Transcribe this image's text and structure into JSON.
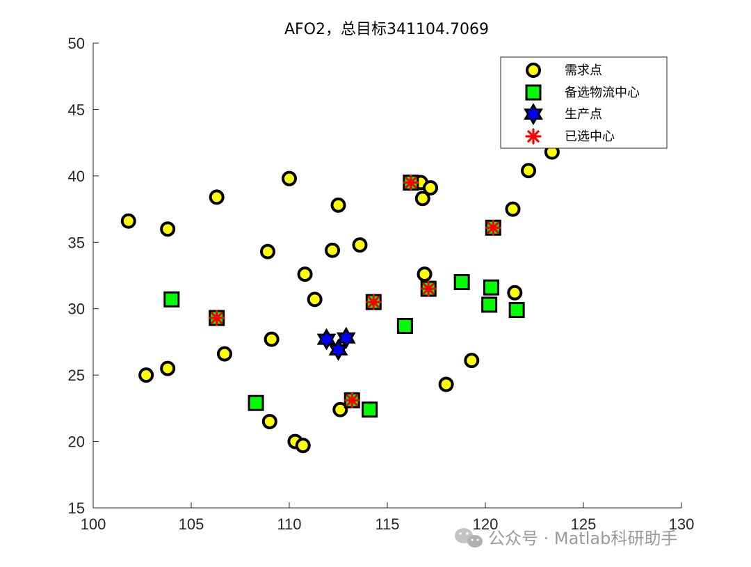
{
  "watermark": {
    "text": "公众号 · Matlab科研助手"
  },
  "colors": {
    "demand_fill": "#ffff00",
    "candidate_fill": "#00ff00",
    "production_fill": "#0000ff",
    "selected_color": "#ff0000",
    "edge": "#000000",
    "axis": "#262626"
  },
  "chart_data": {
    "type": "scatter",
    "title": "AFO2，总目标341104.7069",
    "xlabel": "",
    "ylabel": "",
    "xlim": [
      100,
      130
    ],
    "ylim": [
      15,
      50
    ],
    "xticks": [
      100,
      105,
      110,
      115,
      120,
      125,
      130
    ],
    "yticks": [
      15,
      20,
      25,
      30,
      35,
      40,
      45,
      50
    ],
    "grid": false,
    "legend_position": "top-right",
    "series": [
      {
        "name": "需求点",
        "marker": "circle",
        "points": [
          [
            101.8,
            36.6
          ],
          [
            103.8,
            36.0
          ],
          [
            106.3,
            38.4
          ],
          [
            110.0,
            39.8
          ],
          [
            112.5,
            37.8
          ],
          [
            108.9,
            34.3
          ],
          [
            112.2,
            34.4
          ],
          [
            113.6,
            34.8
          ],
          [
            110.8,
            32.6
          ],
          [
            111.3,
            30.7
          ],
          [
            102.7,
            25.0
          ],
          [
            103.8,
            25.5
          ],
          [
            106.7,
            26.6
          ],
          [
            109.1,
            27.7
          ],
          [
            109.0,
            21.5
          ],
          [
            110.3,
            20.0
          ],
          [
            110.7,
            19.7
          ],
          [
            112.6,
            22.4
          ],
          [
            116.7,
            39.5
          ],
          [
            117.2,
            39.1
          ],
          [
            116.8,
            38.3
          ],
          [
            116.9,
            32.6
          ],
          [
            118.0,
            24.3
          ],
          [
            119.3,
            26.1
          ],
          [
            121.5,
            31.2
          ],
          [
            121.4,
            37.5
          ],
          [
            122.2,
            40.4
          ],
          [
            123.4,
            41.8
          ]
        ]
      },
      {
        "name": "备选物流中心",
        "marker": "square",
        "points": [
          [
            104.0,
            30.7
          ],
          [
            106.3,
            29.3
          ],
          [
            108.3,
            22.9
          ],
          [
            113.2,
            23.1
          ],
          [
            114.1,
            22.4
          ],
          [
            114.3,
            30.5
          ],
          [
            115.9,
            28.7
          ],
          [
            116.2,
            39.5
          ],
          [
            117.1,
            31.5
          ],
          [
            118.8,
            32.0
          ],
          [
            120.2,
            30.3
          ],
          [
            120.3,
            31.6
          ],
          [
            120.4,
            36.1
          ],
          [
            121.6,
            29.9
          ]
        ]
      },
      {
        "name": "生产点",
        "marker": "hexagram",
        "points": [
          [
            111.9,
            27.7
          ],
          [
            112.9,
            27.8
          ],
          [
            112.5,
            26.9
          ]
        ]
      },
      {
        "name": "已选中心",
        "marker": "asterisk",
        "points": [
          [
            106.3,
            29.3
          ],
          [
            113.2,
            23.1
          ],
          [
            114.3,
            30.5
          ],
          [
            116.2,
            39.5
          ],
          [
            117.1,
            31.5
          ],
          [
            120.4,
            36.1
          ]
        ]
      }
    ]
  }
}
